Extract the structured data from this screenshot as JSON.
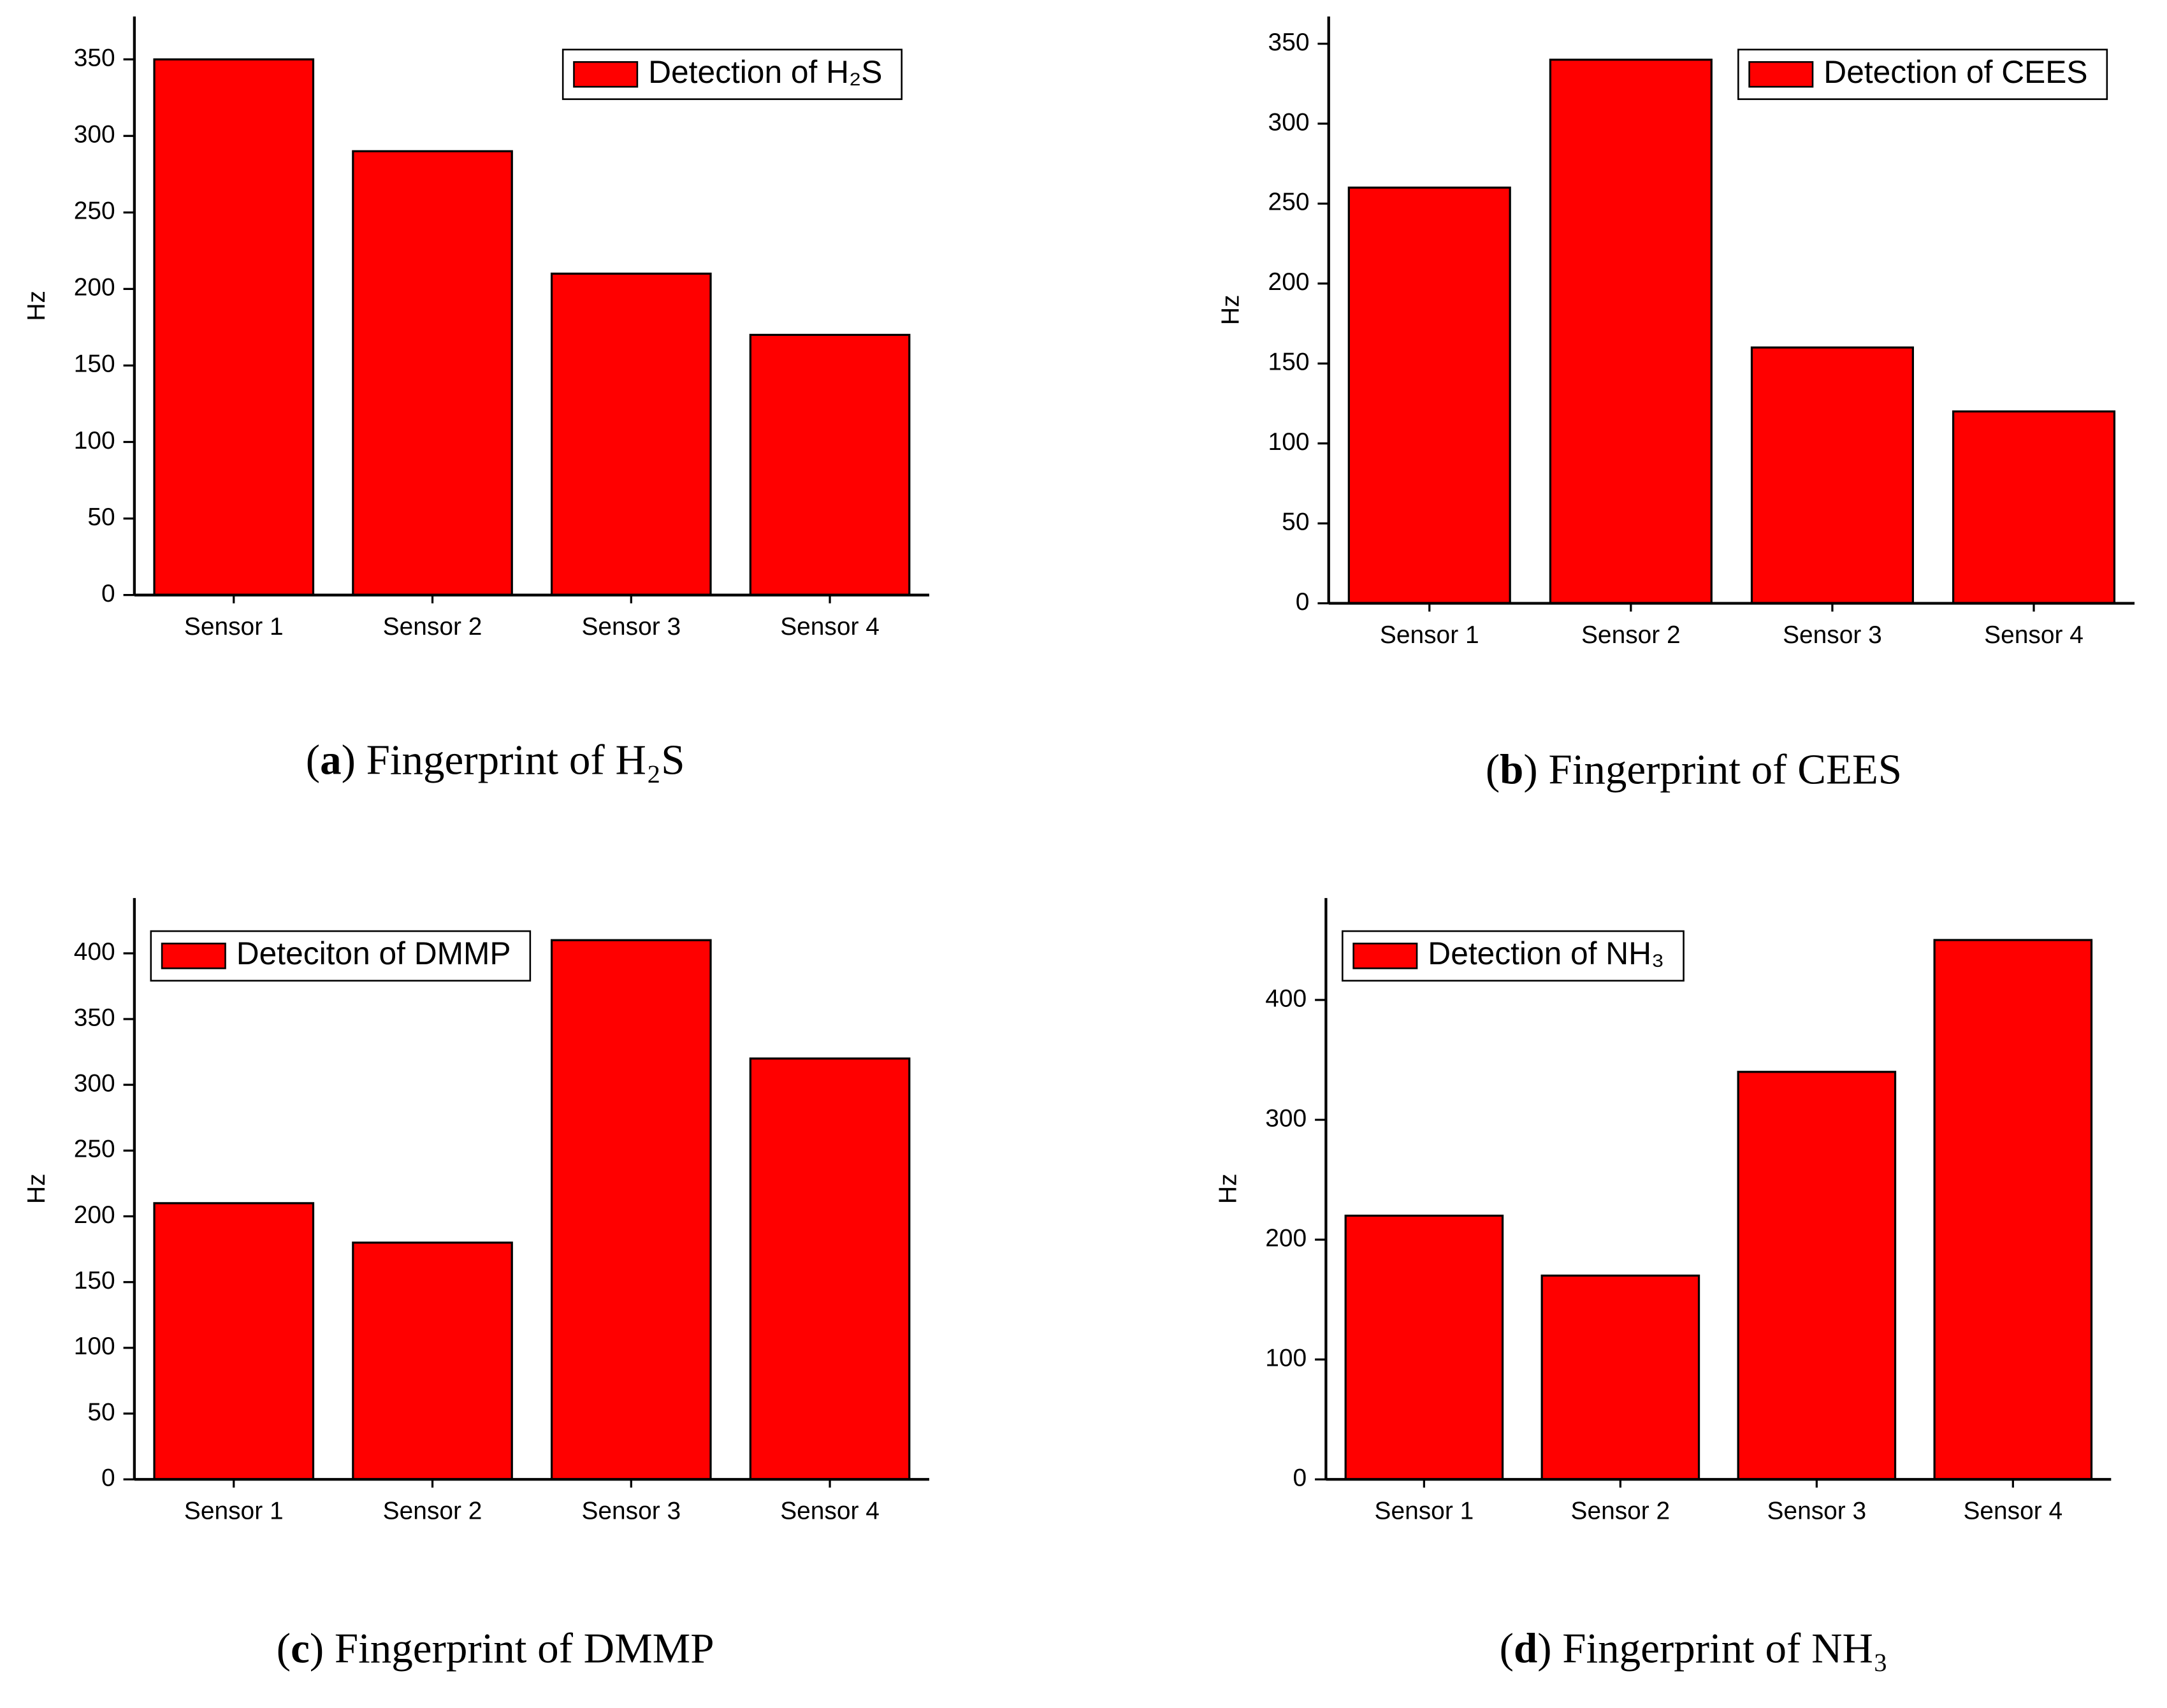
{
  "chart_data": [
    {
      "type": "bar",
      "caption": [
        "(",
        "a",
        ") Fingerprint of H₂S"
      ],
      "y_label": "Hz",
      "legend_position": "upper right",
      "categories": [
        "Sensor 1",
        "Sensor 2",
        "Sensor 3",
        "Sensor 4"
      ],
      "series": [
        {
          "name": "Detection of H₂S",
          "color": "#ff0000",
          "values": [
            350,
            290,
            210,
            170
          ]
        }
      ],
      "ylim": [
        0,
        378
      ],
      "yticks": [
        0,
        50,
        100,
        150,
        200,
        250,
        300,
        350
      ]
    },
    {
      "type": "bar",
      "caption": [
        "(",
        "b",
        ") Fingerprint of CEES"
      ],
      "y_label": "Hz",
      "legend_position": "upper right",
      "categories": [
        "Sensor 1",
        "Sensor 2",
        "Sensor 3",
        "Sensor 4"
      ],
      "series": [
        {
          "name": "Detection of CEES",
          "color": "#ff0000",
          "values": [
            260,
            340,
            160,
            120
          ]
        }
      ],
      "ylim": [
        0,
        367
      ],
      "yticks": [
        0,
        50,
        100,
        150,
        200,
        250,
        300,
        350
      ]
    },
    {
      "type": "bar",
      "caption": [
        "(",
        "c",
        ") Fingerprint of DMMP"
      ],
      "y_label": "Hz",
      "legend_position": "upper left",
      "categories": [
        "Sensor 1",
        "Sensor 2",
        "Sensor 3",
        "Sensor 4"
      ],
      "series": [
        {
          "name": "Deteciton of DMMP",
          "color": "#ff0000",
          "values": [
            210,
            180,
            410,
            320
          ]
        }
      ],
      "ylim": [
        0,
        442
      ],
      "yticks": [
        0,
        50,
        100,
        150,
        200,
        250,
        300,
        350,
        400
      ]
    },
    {
      "type": "bar",
      "caption": [
        "(",
        "d",
        ") Fingerprint of NH₃"
      ],
      "y_label": "Hz",
      "legend_position": "upper left",
      "categories": [
        "Sensor 1",
        "Sensor 2",
        "Sensor 3",
        "Sensor 4"
      ],
      "series": [
        {
          "name": "Detection of NH₃",
          "color": "#ff0000",
          "values": [
            220,
            170,
            340,
            450
          ]
        }
      ],
      "ylim": [
        0,
        485
      ],
      "yticks": [
        0,
        100,
        200,
        300,
        400
      ]
    }
  ]
}
